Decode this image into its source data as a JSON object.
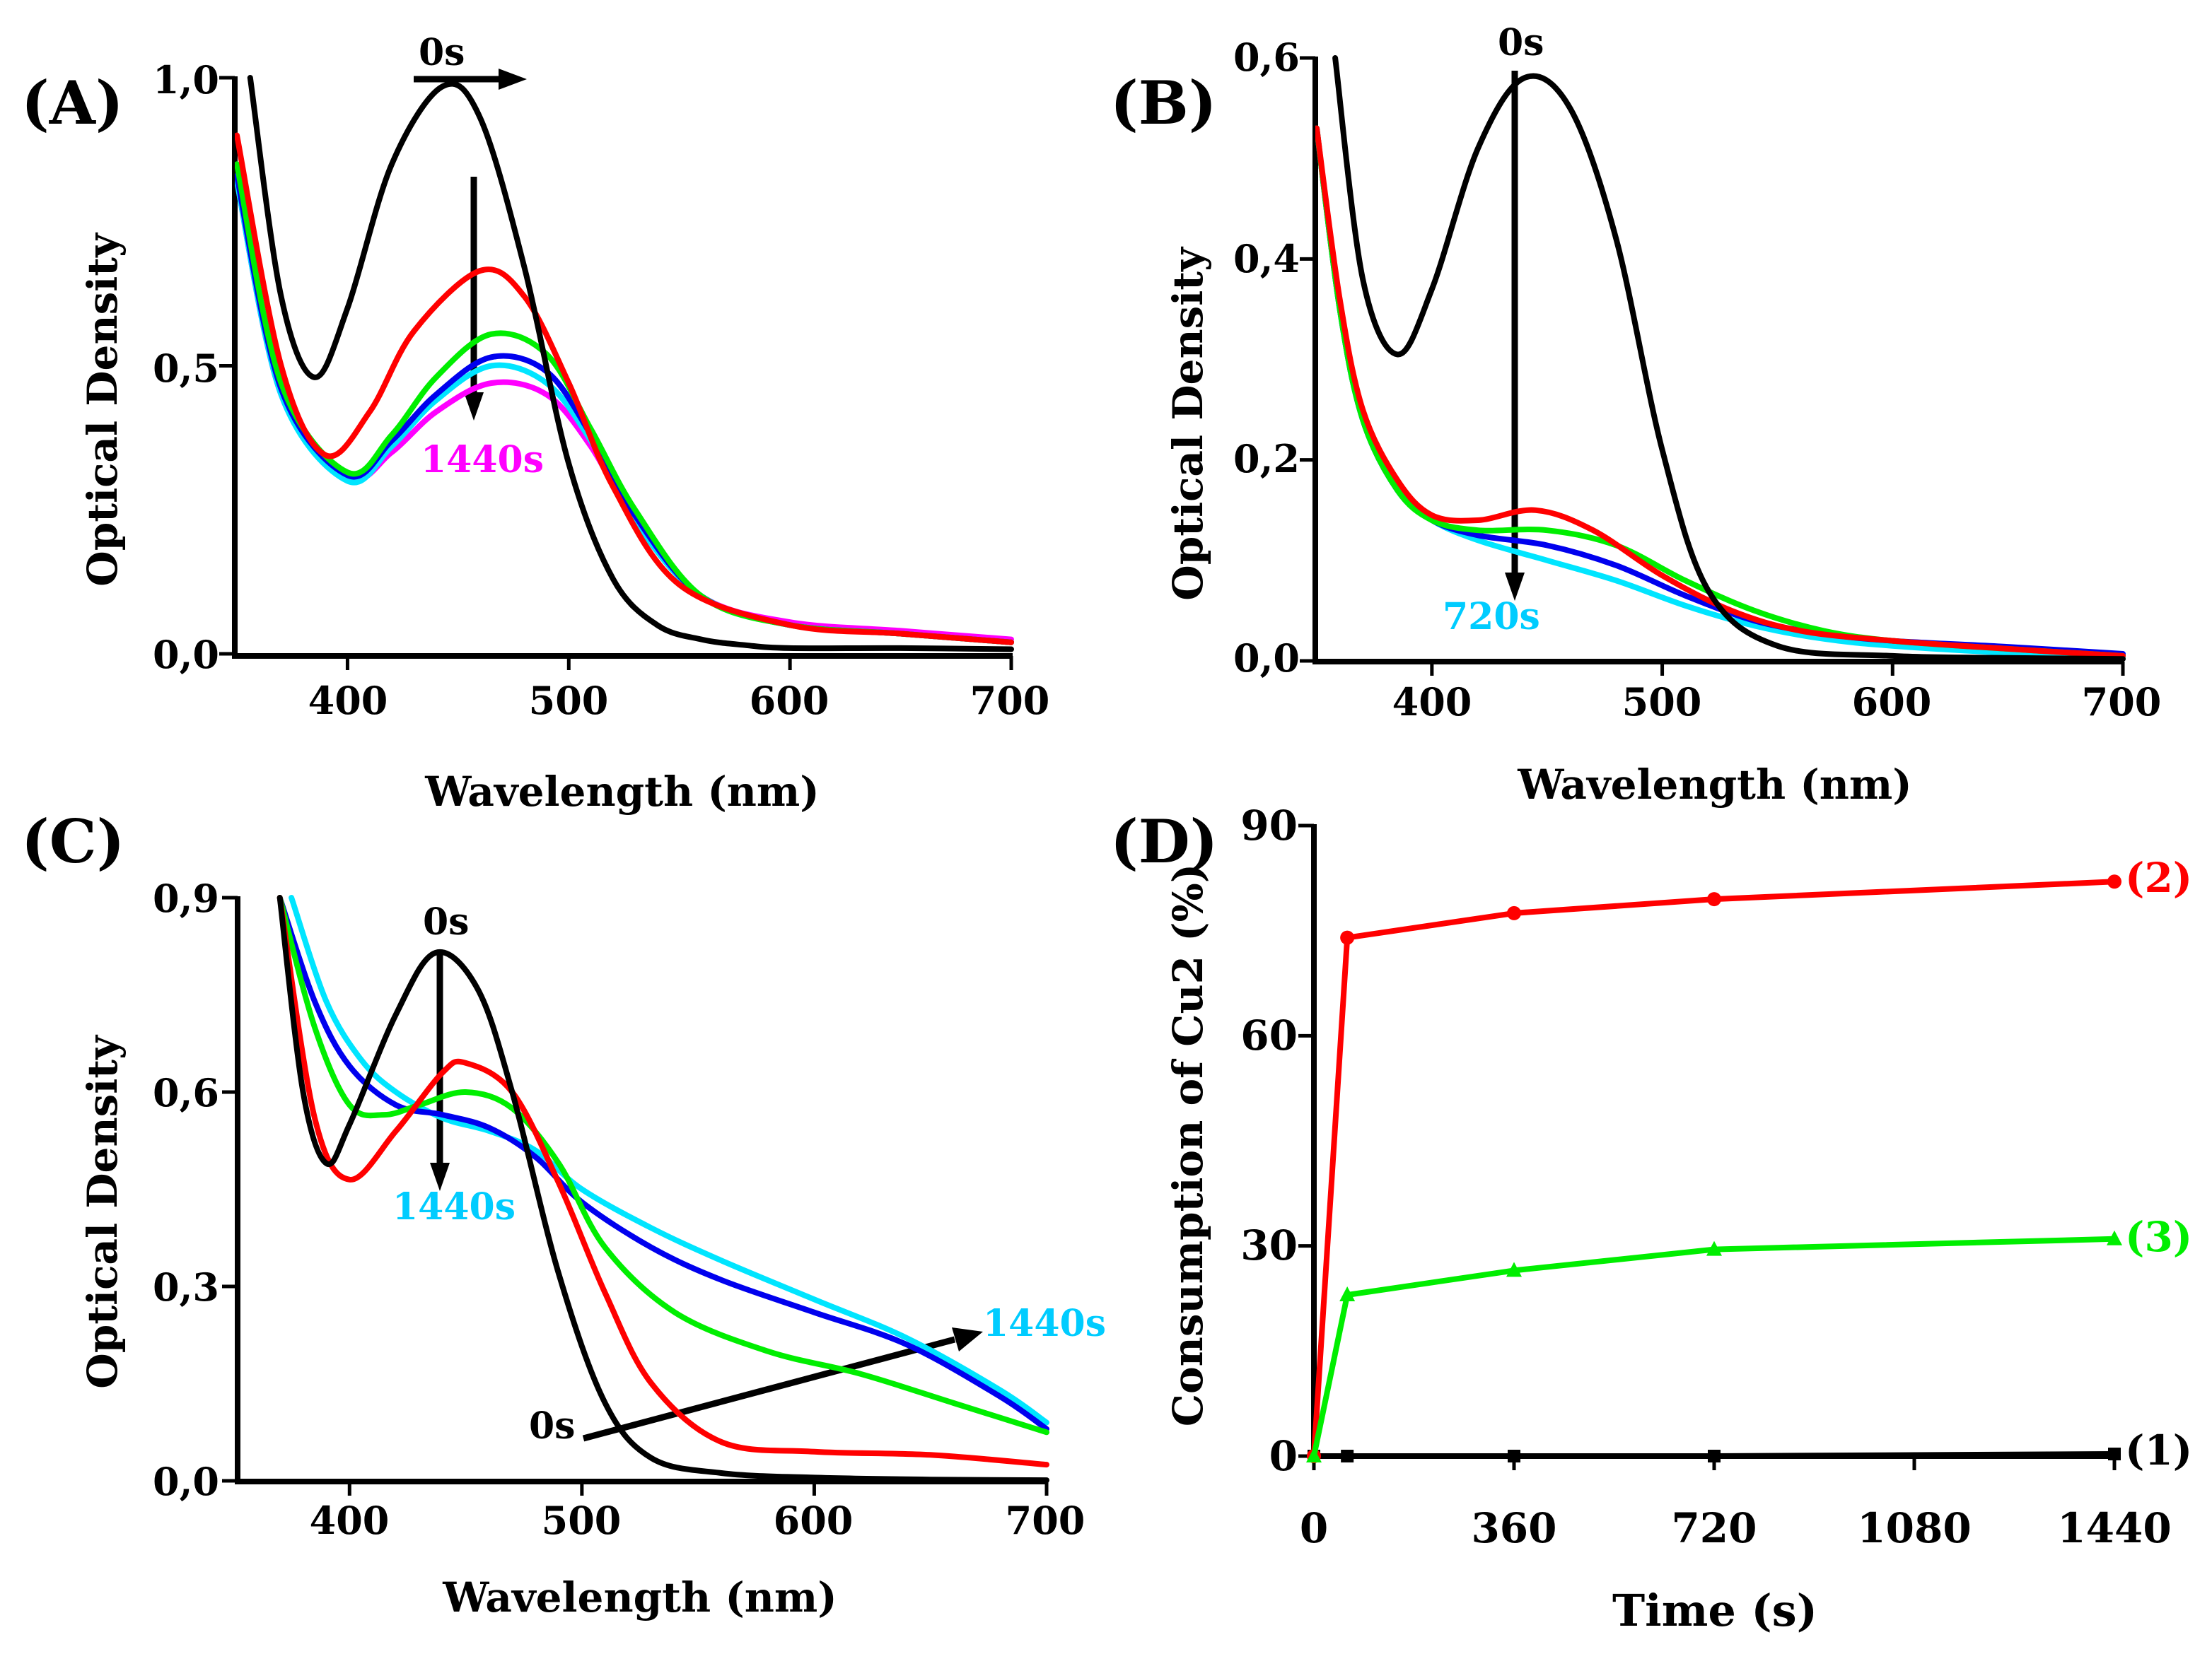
{
  "chart_data": [
    {
      "id": "A",
      "panel_label": "(A)",
      "type": "line",
      "title": "",
      "xlabel": "Wavelength (nm)",
      "ylabel": "Optical Density",
      "xlim": [
        350,
        700
      ],
      "ylim": [
        0,
        1.0
      ],
      "xticks": [
        400,
        500,
        600,
        700
      ],
      "xtick_labels": [
        "400",
        "500",
        "600",
        "700"
      ],
      "yticks": [
        0,
        0.5,
        1.0
      ],
      "ytick_labels": [
        "0,0",
        "0,5",
        "1,0"
      ],
      "annotations": [
        {
          "text": "0s",
          "color": "#000000"
        },
        {
          "text": "1440s",
          "color": "#ff00ff"
        }
      ],
      "series": [
        {
          "name": "0s",
          "color": "#000000",
          "x": [
            356,
            370,
            385,
            400,
            420,
            443,
            460,
            480,
            500,
            520,
            540,
            560,
            580,
            600,
            650,
            700
          ],
          "y": [
            1.0,
            0.62,
            0.48,
            0.6,
            0.85,
            0.985,
            0.93,
            0.67,
            0.33,
            0.13,
            0.05,
            0.025,
            0.015,
            0.01,
            0.01,
            0.008
          ]
        },
        {
          "name": "red",
          "color": "#ff0000",
          "x": [
            350,
            370,
            390,
            410,
            430,
            460,
            480,
            500,
            520,
            550,
            600,
            650,
            700
          ],
          "y": [
            0.9,
            0.5,
            0.345,
            0.42,
            0.56,
            0.665,
            0.62,
            0.47,
            0.29,
            0.12,
            0.05,
            0.035,
            0.02
          ]
        },
        {
          "name": "green",
          "color": "#00ee00",
          "x": [
            350,
            370,
            400,
            420,
            440,
            465,
            490,
            510,
            530,
            560,
            600,
            650,
            700
          ],
          "y": [
            0.85,
            0.47,
            0.315,
            0.38,
            0.48,
            0.555,
            0.52,
            0.39,
            0.25,
            0.1,
            0.05,
            0.035,
            0.02
          ]
        },
        {
          "name": "blue",
          "color": "#0000ee",
          "x": [
            350,
            370,
            400,
            420,
            440,
            465,
            490,
            510,
            530,
            560,
            600,
            650,
            700
          ],
          "y": [
            0.83,
            0.46,
            0.31,
            0.37,
            0.45,
            0.515,
            0.49,
            0.38,
            0.24,
            0.1,
            0.05,
            0.035,
            0.02
          ]
        },
        {
          "name": "cyan",
          "color": "#00e5ff",
          "x": [
            350,
            370,
            400,
            420,
            440,
            465,
            490,
            510,
            530,
            560,
            600,
            650,
            700
          ],
          "y": [
            0.82,
            0.45,
            0.3,
            0.36,
            0.44,
            0.5,
            0.47,
            0.37,
            0.23,
            0.1,
            0.05,
            0.035,
            0.02
          ]
        },
        {
          "name": "1440s",
          "color": "#ff00ff",
          "x": [
            350,
            370,
            400,
            420,
            440,
            465,
            490,
            510,
            530,
            560,
            600,
            650,
            700
          ],
          "y": [
            0.82,
            0.45,
            0.305,
            0.35,
            0.42,
            0.47,
            0.45,
            0.36,
            0.23,
            0.1,
            0.055,
            0.04,
            0.025
          ]
        }
      ]
    },
    {
      "id": "B",
      "panel_label": "(B)",
      "type": "line",
      "title": "",
      "xlabel": "Wavelength (nm)",
      "ylabel": "Optical Density",
      "xlim": [
        350,
        700
      ],
      "ylim": [
        0,
        0.6
      ],
      "xticks": [
        400,
        500,
        600,
        700
      ],
      "xtick_labels": [
        "400",
        "500",
        "600",
        "700"
      ],
      "yticks": [
        0,
        0.2,
        0.4,
        0.6
      ],
      "ytick_labels": [
        "0,0",
        "0,2",
        "0,4",
        "0,6"
      ],
      "annotations": [
        {
          "text": "0s",
          "color": "#000000"
        },
        {
          "text": "720s",
          "color": "#00ccff"
        }
      ],
      "series": [
        {
          "name": "0s",
          "color": "#000000",
          "x": [
            358,
            370,
            385,
            400,
            420,
            440,
            460,
            480,
            500,
            520,
            550,
            600,
            650,
            700
          ],
          "y": [
            0.6,
            0.38,
            0.305,
            0.37,
            0.51,
            0.58,
            0.55,
            0.42,
            0.21,
            0.07,
            0.015,
            0.005,
            0.003,
            0.002
          ]
        },
        {
          "name": "red",
          "color": "#ff0000",
          "x": [
            350,
            360,
            370,
            385,
            400,
            420,
            445,
            470,
            500,
            530,
            560,
            600,
            650,
            700
          ],
          "y": [
            0.53,
            0.36,
            0.25,
            0.18,
            0.145,
            0.14,
            0.15,
            0.13,
            0.085,
            0.05,
            0.03,
            0.02,
            0.012,
            0.005
          ]
        },
        {
          "name": "green",
          "color": "#00ee00",
          "x": [
            350,
            360,
            370,
            385,
            400,
            420,
            450,
            480,
            510,
            540,
            570,
            600,
            650,
            700
          ],
          "y": [
            0.53,
            0.35,
            0.24,
            0.17,
            0.14,
            0.13,
            0.13,
            0.115,
            0.08,
            0.05,
            0.03,
            0.02,
            0.012,
            0.005
          ]
        },
        {
          "name": "blue",
          "color": "#0000ee",
          "x": [
            350,
            360,
            370,
            385,
            400,
            420,
            450,
            480,
            510,
            540,
            570,
            600,
            650,
            700
          ],
          "y": [
            0.53,
            0.35,
            0.24,
            0.17,
            0.14,
            0.125,
            0.115,
            0.095,
            0.065,
            0.04,
            0.027,
            0.02,
            0.014,
            0.007
          ]
        },
        {
          "name": "720s",
          "color": "#00e5ff",
          "x": [
            350,
            360,
            370,
            385,
            400,
            420,
            450,
            480,
            510,
            540,
            570,
            600,
            650,
            700
          ],
          "y": [
            0.53,
            0.35,
            0.24,
            0.17,
            0.14,
            0.12,
            0.1,
            0.08,
            0.055,
            0.035,
            0.022,
            0.015,
            0.008,
            0.003
          ]
        }
      ]
    },
    {
      "id": "C",
      "panel_label": "(C)",
      "type": "line",
      "title": "",
      "xlabel": "Wavelength (nm)",
      "ylabel": "Optical Density",
      "xlim": [
        350,
        700
      ],
      "ylim": [
        0,
        0.9
      ],
      "xticks": [
        400,
        500,
        600,
        700
      ],
      "xtick_labels": [
        "400",
        "500",
        "600",
        "700"
      ],
      "yticks": [
        0,
        0.3,
        0.6,
        0.9
      ],
      "ytick_labels": [
        "0,0",
        "0,3",
        "0,6",
        "0,9"
      ],
      "annotations": [
        {
          "text": "0s",
          "color": "#000000"
        },
        {
          "text": "1440s",
          "color": "#00ccff"
        },
        {
          "text": "0s",
          "color": "#000000"
        },
        {
          "text": "1440s",
          "color": "#00ccff"
        }
      ],
      "series": [
        {
          "name": "0s",
          "color": "#000000",
          "x": [
            370,
            380,
            390,
            400,
            420,
            437,
            455,
            470,
            490,
            510,
            530,
            560,
            600,
            650,
            700
          ],
          "y": [
            0.9,
            0.6,
            0.49,
            0.55,
            0.72,
            0.815,
            0.76,
            0.6,
            0.32,
            0.12,
            0.035,
            0.012,
            0.005,
            0.002,
            0.001
          ]
        },
        {
          "name": "red",
          "color": "#ff0000",
          "x": [
            370,
            385,
            400,
            420,
            440,
            450,
            470,
            490,
            510,
            530,
            560,
            600,
            650,
            700
          ],
          "y": [
            0.9,
            0.56,
            0.465,
            0.54,
            0.63,
            0.645,
            0.6,
            0.46,
            0.29,
            0.15,
            0.06,
            0.045,
            0.04,
            0.025
          ]
        },
        {
          "name": "green",
          "color": "#00ee00",
          "x": [
            370,
            385,
            400,
            415,
            430,
            450,
            470,
            490,
            510,
            540,
            580,
            620,
            660,
            700
          ],
          "y": [
            0.9,
            0.7,
            0.58,
            0.565,
            0.58,
            0.6,
            0.575,
            0.49,
            0.36,
            0.26,
            0.2,
            0.165,
            0.12,
            0.075
          ]
        },
        {
          "name": "blue",
          "color": "#0000ee",
          "x": [
            370,
            385,
            400,
            420,
            440,
            460,
            480,
            500,
            530,
            560,
            600,
            640,
            680,
            700
          ],
          "y": [
            0.9,
            0.74,
            0.64,
            0.58,
            0.565,
            0.545,
            0.5,
            0.43,
            0.36,
            0.31,
            0.26,
            0.21,
            0.13,
            0.08
          ]
        },
        {
          "name": "1440s",
          "color": "#00e5ff",
          "x": [
            375,
            390,
            405,
            420,
            440,
            460,
            480,
            500,
            530,
            560,
            600,
            640,
            680,
            700
          ],
          "y": [
            0.9,
            0.74,
            0.65,
            0.6,
            0.56,
            0.54,
            0.51,
            0.45,
            0.39,
            0.34,
            0.28,
            0.22,
            0.14,
            0.09
          ]
        }
      ]
    },
    {
      "id": "D",
      "panel_label": "(D)",
      "type": "line",
      "title": "",
      "xlabel": "Time (s)",
      "ylabel": "Consumption of Cu2 (%)",
      "xlim": [
        0,
        1440
      ],
      "ylim": [
        0,
        90
      ],
      "xticks": [
        0,
        360,
        720,
        1080,
        1440
      ],
      "xtick_labels": [
        "0",
        "360",
        "720",
        "1080",
        "1440"
      ],
      "yticks": [
        0,
        30,
        60,
        90
      ],
      "ytick_labels": [
        "0",
        "30",
        "60",
        "90"
      ],
      "series": [
        {
          "name": "(1)",
          "color": "#000000",
          "marker": "square",
          "x": [
            0,
            60,
            360,
            720,
            1440
          ],
          "y": [
            0,
            0,
            0,
            0,
            0.3
          ]
        },
        {
          "name": "(2)",
          "color": "#ff0000",
          "marker": "circle",
          "x": [
            0,
            60,
            360,
            720,
            1440
          ],
          "y": [
            0,
            74,
            77.5,
            79.5,
            82
          ]
        },
        {
          "name": "(3)",
          "color": "#00ee00",
          "marker": "triangle",
          "x": [
            0,
            60,
            360,
            720,
            1440
          ],
          "y": [
            0,
            23,
            26.5,
            29.5,
            31
          ]
        }
      ]
    }
  ]
}
